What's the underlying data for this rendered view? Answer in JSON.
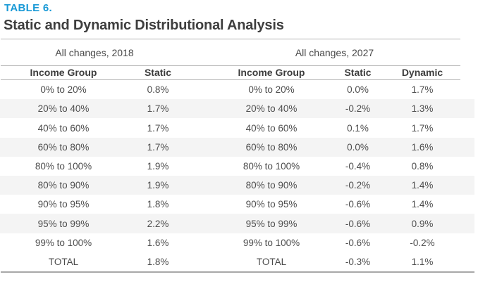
{
  "table_label": "TABLE 6.",
  "title": "Static and Dynamic Distributional Analysis",
  "group_headers": [
    "All changes, 2018",
    "All changes, 2027"
  ],
  "columns": [
    "Income Group",
    "Static",
    "Income Group",
    "Static",
    "Dynamic"
  ],
  "rows": [
    [
      "0% to 20%",
      "0.8%",
      "0% to 20%",
      "0.0%",
      "1.7%"
    ],
    [
      "20% to 40%",
      "1.7%",
      "20% to 40%",
      "-0.2%",
      "1.3%"
    ],
    [
      "40% to 60%",
      "1.7%",
      "40% to 60%",
      "0.1%",
      "1.7%"
    ],
    [
      "60% to 80%",
      "1.7%",
      "60% to 80%",
      "0.0%",
      "1.6%"
    ],
    [
      "80% to 100%",
      "1.9%",
      "80% to 100%",
      "-0.4%",
      "0.8%"
    ],
    [
      "80% to 90%",
      "1.9%",
      "80% to 90%",
      "-0.2%",
      "1.4%"
    ],
    [
      "90% to 95%",
      "1.8%",
      "90% to 95%",
      "-0.6%",
      "1.4%"
    ],
    [
      "95% to 99%",
      "2.2%",
      "95% to 99%",
      "-0.6%",
      "0.9%"
    ],
    [
      "99% to 100%",
      "1.6%",
      "99% to 100%",
      "-0.6%",
      "-0.2%"
    ],
    [
      "TOTAL",
      "1.8%",
      "TOTAL",
      "-0.3%",
      "1.1%"
    ]
  ],
  "colors": {
    "accent_blue": "#1899d6",
    "title_gray": "#3e3e3e",
    "text_gray": "#4d4d4d",
    "rule_gray": "#b4b4b4",
    "stripe_gray": "#f4f4f4"
  },
  "chart_data": {
    "type": "table",
    "table_number": "TABLE 6.",
    "title": "Static and Dynamic Distributional Analysis",
    "column_groups": [
      "All changes, 2018",
      "All changes, 2027"
    ],
    "columns": [
      "Income Group",
      "Static",
      "Income Group",
      "Static",
      "Dynamic"
    ],
    "income_groups": [
      "0% to 20%",
      "20% to 40%",
      "40% to 60%",
      "60% to 80%",
      "80% to 100%",
      "80% to 90%",
      "90% to 95%",
      "95% to 99%",
      "99% to 100%",
      "TOTAL"
    ],
    "series": [
      {
        "name": "Static, 2018 (%)",
        "values": [
          0.8,
          1.7,
          1.7,
          1.7,
          1.9,
          1.9,
          1.8,
          2.2,
          1.6,
          1.8
        ]
      },
      {
        "name": "Static, 2027 (%)",
        "values": [
          0.0,
          -0.2,
          0.1,
          0.0,
          -0.4,
          -0.2,
          -0.6,
          -0.6,
          -0.6,
          -0.3
        ]
      },
      {
        "name": "Dynamic, 2027 (%)",
        "values": [
          1.7,
          1.3,
          1.7,
          1.6,
          0.8,
          1.4,
          1.4,
          0.9,
          -0.2,
          1.1
        ]
      }
    ],
    "units": "percent change",
    "striped_row_indices": [
      1,
      3,
      5,
      7
    ]
  }
}
